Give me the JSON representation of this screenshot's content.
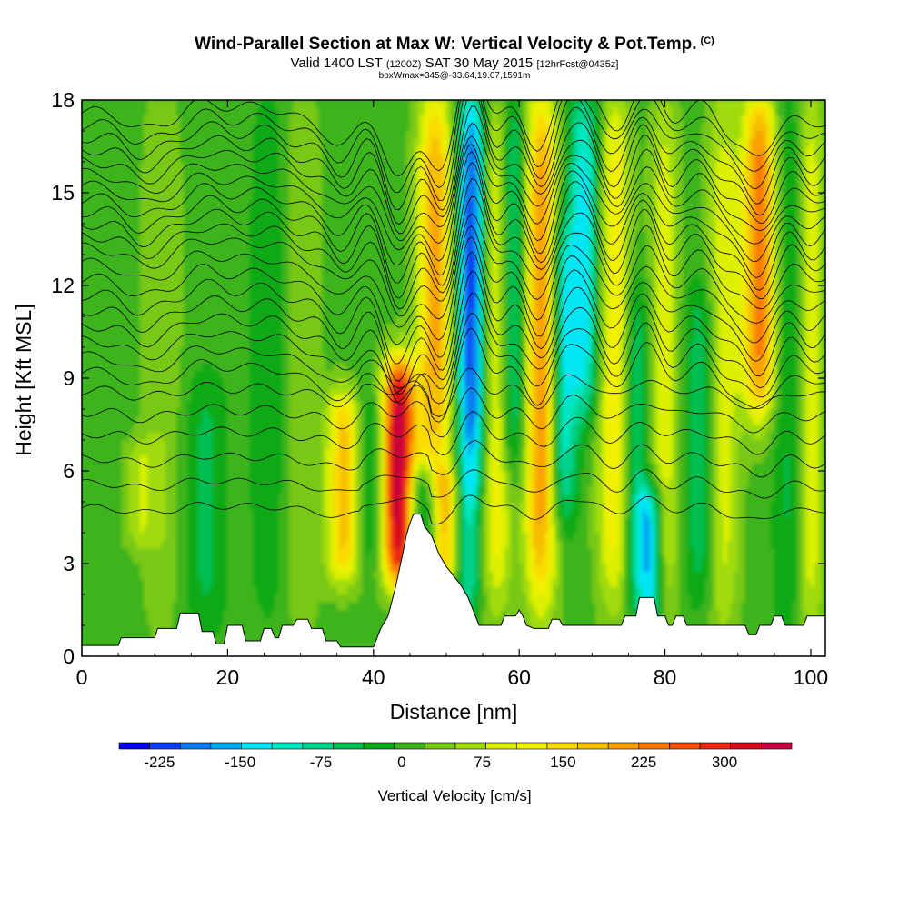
{
  "chart_data": {
    "type": "heatmap",
    "title": "Wind-Parallel Section at Max W: Vertical Velocity & Pot.Temp.",
    "title_mark": "(C)",
    "subtitle_main": "Valid 1400 LST",
    "subtitle_utc": "(1200Z)",
    "subtitle_date": "SAT 30 May 2015",
    "subtitle_fcst": "[12hrFcst@0435z]",
    "subnote": "boxWmax=345@-33.64,19.07,1591m",
    "xlabel": "Distance [nm]",
    "ylabel": "Height [Kft MSL]",
    "xlim": [
      0,
      102
    ],
    "ylim": [
      0,
      18
    ],
    "xticks": [
      "0",
      "20",
      "40",
      "60",
      "80",
      "100"
    ],
    "yticks": [
      "0",
      "3",
      "6",
      "9",
      "12",
      "15",
      "18"
    ],
    "colorbar": {
      "label": "Vertical Velocity [cm/s]",
      "ticks": [
        "-225",
        "-150",
        "-75",
        "0",
        "75",
        "150",
        "225",
        "300"
      ],
      "tick_values": [
        -225,
        -150,
        -75,
        0,
        75,
        150,
        225,
        300
      ],
      "range": [
        -262.5,
        362.5
      ],
      "colors": [
        "#0000f0",
        "#0a3cf5",
        "#0a78f0",
        "#00aaf0",
        "#00e6f5",
        "#00e6c0",
        "#00d28c",
        "#00be50",
        "#0aaa14",
        "#3cb41e",
        "#78c814",
        "#a0dc0a",
        "#dcf000",
        "#f0f000",
        "#fada00",
        "#f5be00",
        "#faa000",
        "#fa7800",
        "#f55000",
        "#eb2814",
        "#d70a1e",
        "#c8003c"
      ]
    },
    "velocity_columns": [
      {
        "x": 8,
        "w": 1.5,
        "w_max": 60,
        "z0": 3.5,
        "z1": 7
      },
      {
        "x": 11,
        "w": 2,
        "w_max": 40,
        "z0": 1,
        "z1": 18
      },
      {
        "x": 17,
        "w": 2,
        "w_max": -50,
        "z0": 1,
        "z1": 9
      },
      {
        "x": 26,
        "w": 2,
        "w_max": -40,
        "z0": 1.5,
        "z1": 18
      },
      {
        "x": 30,
        "w": 2,
        "w_max": 45,
        "z0": 1,
        "z1": 18
      },
      {
        "x": 36,
        "w": 1.6,
        "w_max": 170,
        "z0": 2.5,
        "z1": 8.5
      },
      {
        "x": 39.5,
        "w": 1.5,
        "w_max": -60,
        "z0": 3,
        "z1": 8.5
      },
      {
        "x": 43.5,
        "w": 1.6,
        "w_max": 345,
        "z0": 2.5,
        "z1": 9.5
      },
      {
        "x": 46.5,
        "w": 1.4,
        "w_max": -110,
        "z0": 3.5,
        "z1": 6
      },
      {
        "x": 48.5,
        "w": 1.7,
        "w_max": 190,
        "z0": 6,
        "z1": 18
      },
      {
        "x": 50,
        "w": 1.4,
        "w_max": 160,
        "z0": 2.5,
        "z1": 6
      },
      {
        "x": 53.5,
        "w": 1.4,
        "w_max": -230,
        "z0": 6,
        "z1": 18
      },
      {
        "x": 53,
        "w": 1.3,
        "w_max": -100,
        "z0": 1.5,
        "z1": 6
      },
      {
        "x": 57,
        "w": 1.5,
        "w_max": 130,
        "z0": 2,
        "z1": 18
      },
      {
        "x": 59,
        "w": 1.4,
        "w_max": -120,
        "z0": 6,
        "z1": 18
      },
      {
        "x": 63,
        "w": 1.6,
        "w_max": 210,
        "z0": 2,
        "z1": 18
      },
      {
        "x": 66,
        "w": 1.3,
        "w_max": -130,
        "z0": 4.5,
        "z1": 14
      },
      {
        "x": 69,
        "w": 1.6,
        "w_max": -140,
        "z0": 8,
        "z1": 18
      },
      {
        "x": 73,
        "w": 1.6,
        "w_max": 130,
        "z0": 2,
        "z1": 18
      },
      {
        "x": 76,
        "w": 1.2,
        "w_max": -80,
        "z0": 2,
        "z1": 12
      },
      {
        "x": 78,
        "w": 1.3,
        "w_max": -160,
        "z0": 1,
        "z1": 5.5
      },
      {
        "x": 80,
        "w": 1.4,
        "w_max": 90,
        "z0": 1,
        "z1": 18
      },
      {
        "x": 85,
        "w": 1.6,
        "w_max": -70,
        "z0": 2,
        "z1": 12
      },
      {
        "x": 88,
        "w": 1.6,
        "w_max": 90,
        "z0": 1,
        "z1": 18
      },
      {
        "x": 93,
        "w": 1.6,
        "w_max": 230,
        "z0": 8,
        "z1": 18
      },
      {
        "x": 97,
        "w": 1.5,
        "w_max": -50,
        "z0": 1,
        "z1": 18
      },
      {
        "x": 100,
        "w": 1.3,
        "w_max": 100,
        "z0": 1,
        "z1": 18
      }
    ],
    "terrain_kft": [
      [
        0,
        0.35
      ],
      [
        5,
        0.35
      ],
      [
        5.4,
        0.6
      ],
      [
        10,
        0.6
      ],
      [
        10.4,
        0.9
      ],
      [
        13,
        0.9
      ],
      [
        13.5,
        1.4
      ],
      [
        16,
        1.4
      ],
      [
        16.5,
        0.8
      ],
      [
        18,
        0.8
      ],
      [
        18.4,
        0.4
      ],
      [
        19.5,
        0.4
      ],
      [
        20,
        1.0
      ],
      [
        22,
        1.0
      ],
      [
        22.5,
        0.5
      ],
      [
        24.5,
        0.5
      ],
      [
        25,
        0.9
      ],
      [
        26,
        0.9
      ],
      [
        26.5,
        0.6
      ],
      [
        27,
        0.6
      ],
      [
        27.5,
        1.0
      ],
      [
        29,
        1.0
      ],
      [
        29.5,
        1.2
      ],
      [
        31,
        1.2
      ],
      [
        31.5,
        0.9
      ],
      [
        33,
        0.9
      ],
      [
        33.5,
        0.5
      ],
      [
        35,
        0.5
      ],
      [
        35.5,
        0.3
      ],
      [
        40,
        0.3
      ],
      [
        41,
        0.9
      ],
      [
        42,
        1.3
      ],
      [
        43,
        2.2
      ],
      [
        44,
        3.3
      ],
      [
        44.5,
        3.9
      ],
      [
        45,
        4.3
      ],
      [
        45.5,
        4.6
      ],
      [
        46.5,
        4.6
      ],
      [
        47,
        4.2
      ],
      [
        48,
        3.9
      ],
      [
        49,
        3.3
      ],
      [
        50,
        2.9
      ],
      [
        51,
        2.6
      ],
      [
        52,
        2.3
      ],
      [
        53,
        1.9
      ],
      [
        54,
        1.3
      ],
      [
        54.5,
        1.0
      ],
      [
        57.5,
        1.0
      ],
      [
        58,
        1.3
      ],
      [
        59.5,
        1.3
      ],
      [
        60,
        1.5
      ],
      [
        60.5,
        1.3
      ],
      [
        61,
        1.0
      ],
      [
        62,
        0.9
      ],
      [
        64,
        0.9
      ],
      [
        64.5,
        1.2
      ],
      [
        65.5,
        1.2
      ],
      [
        66,
        1.0
      ],
      [
        74,
        1.0
      ],
      [
        74.5,
        1.3
      ],
      [
        76,
        1.3
      ],
      [
        76.5,
        1.9
      ],
      [
        78.5,
        1.9
      ],
      [
        79,
        1.3
      ],
      [
        80,
        1.3
      ],
      [
        80.5,
        1.0
      ],
      [
        81,
        1.0
      ],
      [
        81.5,
        1.3
      ],
      [
        82.5,
        1.3
      ],
      [
        83,
        1.0
      ],
      [
        91,
        1.0
      ],
      [
        91.5,
        0.7
      ],
      [
        92.5,
        0.7
      ],
      [
        93,
        1.0
      ],
      [
        94.5,
        1.0
      ],
      [
        95,
        1.3
      ],
      [
        96,
        1.3
      ],
      [
        96.5,
        1.0
      ],
      [
        99,
        1.0
      ],
      [
        99.5,
        1.3
      ],
      [
        102,
        1.3
      ]
    ],
    "theta_levels_count": 26,
    "theta_isentrope_kft": [
      4.8,
      5.6,
      6.4,
      7.2,
      7.9,
      8.6,
      9.2,
      9.7,
      10.2,
      10.7,
      11.2,
      11.7,
      12.2,
      12.7,
      13.2,
      13.6,
      14.0,
      14.4,
      14.8,
      15.2,
      15.6,
      16.0,
      16.4,
      16.8,
      17.2,
      17.6
    ]
  },
  "colors": {
    "background": "#ffffff",
    "terrain": "#ffffff",
    "contour": "#000000"
  }
}
